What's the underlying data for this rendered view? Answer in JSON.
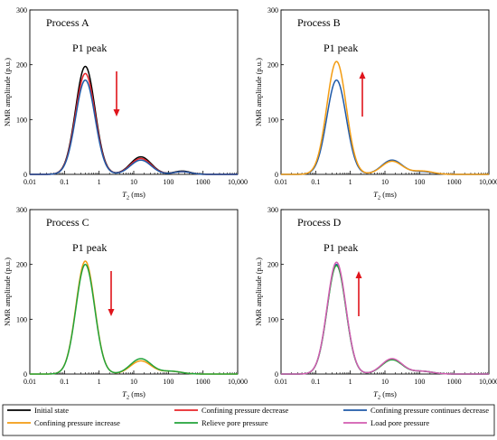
{
  "colors": {
    "initial": "#000000",
    "decrease": "#e8242a",
    "continues": "#1f5aa8",
    "increase": "#f39c12",
    "relieve": "#22a33a",
    "load": "#d25cb0",
    "arrow": "#e0141b"
  },
  "legend": [
    {
      "label": "Initial state",
      "color_key": "initial"
    },
    {
      "label": "Confining pressure  decrease",
      "color_key": "decrease"
    },
    {
      "label": "Confining pressure  continues decrease",
      "color_key": "continues"
    },
    {
      "label": "Confining pressure increase",
      "color_key": "increase"
    },
    {
      "label": "Relieve pore pressure",
      "color_key": "relieve"
    },
    {
      "label": "Load pore pressure",
      "color_key": "load"
    }
  ],
  "chart_data": [
    {
      "type": "line",
      "title": "Process A",
      "annotation": "P1  peak",
      "arrow_direction": "down",
      "xlabel_main": "T",
      "xlabel_sub": "2",
      "xlabel_unit": " (ms)",
      "ylabel": "NMR amplitude (p.u.)",
      "x_scale": "log",
      "xlim": [
        0.01,
        10000
      ],
      "ylim": [
        0,
        300
      ],
      "xticks": [
        "0.01",
        "0.1",
        "1",
        "10",
        "100",
        "1000",
        "10,000"
      ],
      "yticks": [
        0,
        100,
        200,
        300
      ],
      "series": [
        {
          "name": "Initial state",
          "color_key": "initial",
          "peaks": [
            {
              "center": 0.4,
              "width": 0.28,
              "amp": 197
            },
            {
              "center": 16,
              "width": 0.3,
              "amp": 32
            },
            {
              "center": 250,
              "width": 0.24,
              "amp": 6
            }
          ]
        },
        {
          "name": "Confining pressure  decrease",
          "color_key": "decrease",
          "peaks": [
            {
              "center": 0.4,
              "width": 0.28,
              "amp": 184
            },
            {
              "center": 16,
              "width": 0.3,
              "amp": 29
            },
            {
              "center": 250,
              "width": 0.24,
              "amp": 5
            }
          ]
        },
        {
          "name": "Confining pressure  continues decrease",
          "color_key": "continues",
          "peaks": [
            {
              "center": 0.4,
              "width": 0.28,
              "amp": 172
            },
            {
              "center": 16,
              "width": 0.3,
              "amp": 26
            },
            {
              "center": 250,
              "width": 0.24,
              "amp": 5
            }
          ]
        }
      ]
    },
    {
      "type": "line",
      "title": "Process B",
      "annotation": "P1  peak",
      "arrow_direction": "up",
      "xlabel_main": "T",
      "xlabel_sub": "2",
      "xlabel_unit": " (ms)",
      "ylabel": "NMR amplitude (p.u.)",
      "x_scale": "log",
      "xlim": [
        0.01,
        10000
      ],
      "ylim": [
        0,
        300
      ],
      "xticks": [
        "0.01",
        "0.1",
        "1",
        "10",
        "100",
        "1000",
        "10,000"
      ],
      "yticks": [
        0,
        100,
        200,
        300
      ],
      "series": [
        {
          "name": "Confining pressure  continues decrease",
          "color_key": "continues",
          "peaks": [
            {
              "center": 0.4,
              "width": 0.28,
              "amp": 172
            },
            {
              "center": 16,
              "width": 0.3,
              "amp": 26
            },
            {
              "center": 120,
              "width": 0.3,
              "amp": 5
            }
          ]
        },
        {
          "name": "Confining pressure increase",
          "color_key": "increase",
          "peaks": [
            {
              "center": 0.4,
              "width": 0.28,
              "amp": 206
            },
            {
              "center": 16,
              "width": 0.3,
              "amp": 24
            },
            {
              "center": 120,
              "width": 0.3,
              "amp": 6
            }
          ]
        }
      ]
    },
    {
      "type": "line",
      "title": "Process C",
      "annotation": "P1  peak",
      "arrow_direction": "down",
      "xlabel_main": "T",
      "xlabel_sub": "2",
      "xlabel_unit": " (ms)",
      "ylabel": "NMR amplitude (p.u.)",
      "x_scale": "log",
      "xlim": [
        0.01,
        10000
      ],
      "ylim": [
        0,
        300
      ],
      "xticks": [
        "0.01",
        "0.1",
        "1",
        "10",
        "100",
        "1000",
        "10,000"
      ],
      "yticks": [
        0,
        100,
        200,
        300
      ],
      "series": [
        {
          "name": "Confining pressure increase",
          "color_key": "increase",
          "peaks": [
            {
              "center": 0.4,
              "width": 0.27,
              "amp": 206
            },
            {
              "center": 16,
              "width": 0.3,
              "amp": 24
            },
            {
              "center": 120,
              "width": 0.3,
              "amp": 5
            }
          ]
        },
        {
          "name": "Relieve pore pressure",
          "color_key": "relieve",
          "peaks": [
            {
              "center": 0.4,
              "width": 0.27,
              "amp": 200
            },
            {
              "center": 16,
              "width": 0.3,
              "amp": 28
            },
            {
              "center": 120,
              "width": 0.3,
              "amp": 5
            }
          ]
        }
      ]
    },
    {
      "type": "line",
      "title": "Process D",
      "annotation": "P1  peak",
      "arrow_direction": "up",
      "xlabel_main": "T",
      "xlabel_sub": "2",
      "xlabel_unit": " (ms)",
      "ylabel": "NMR amplitude (p.u.)",
      "x_scale": "log",
      "xlim": [
        0.01,
        10000
      ],
      "ylim": [
        0,
        300
      ],
      "xticks": [
        "0.01",
        "0.1",
        "1",
        "10",
        "100",
        "1000",
        "10,000"
      ],
      "yticks": [
        0,
        100,
        200,
        300
      ],
      "series": [
        {
          "name": "Confining pressure  continues decrease",
          "color_key": "continues",
          "peaks": [
            {
              "center": 0.4,
              "width": 0.27,
              "amp": 200
            },
            {
              "center": 16,
              "width": 0.3,
              "amp": 27
            },
            {
              "center": 120,
              "width": 0.3,
              "amp": 5
            }
          ]
        },
        {
          "name": "Relieve pore pressure",
          "color_key": "relieve",
          "peaks": [
            {
              "center": 0.4,
              "width": 0.27,
              "amp": 198
            },
            {
              "center": 16,
              "width": 0.3,
              "amp": 26
            },
            {
              "center": 120,
              "width": 0.3,
              "amp": 5
            }
          ]
        },
        {
          "name": "Load pore pressure",
          "color_key": "load",
          "peaks": [
            {
              "center": 0.4,
              "width": 0.27,
              "amp": 204
            },
            {
              "center": 16,
              "width": 0.3,
              "amp": 28
            },
            {
              "center": 120,
              "width": 0.3,
              "amp": 5
            }
          ]
        }
      ]
    }
  ]
}
